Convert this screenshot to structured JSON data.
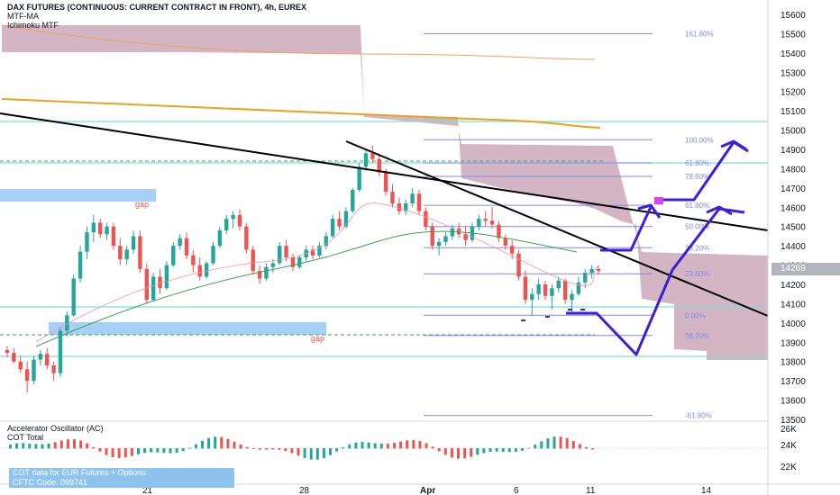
{
  "header": {
    "title": "DAX FUTURES (CONTINUOUS: CURRENT CONTRACT IN FRONT), 4h, EUREX",
    "indicator_1": "MTF-MA",
    "indicator_2": "Ichimoku MTF"
  },
  "oscillator": {
    "label_1": "Accelerator Oscillator (AC)",
    "label_2": "COT Total",
    "note_line_1": "COT data for EUR Futures + Options",
    "note_line_2": "CFTC Code: 099741"
  },
  "current_price": "14269",
  "colors": {
    "up_candle": "#26a69a",
    "down_candle": "#ef5350",
    "cloud": "#c9a3b4",
    "fib_line": "#7b8cf0",
    "cyan_level": "#7fdedc",
    "forecast": "#3d1fd9",
    "trendline": "#000000",
    "gap_zone": "#90c4f5"
  },
  "chart_data": {
    "type": "candlestick",
    "timeframe": "4h",
    "y_axis": {
      "ticks": [
        13500,
        13600,
        13700,
        13800,
        13900,
        14000,
        14100,
        14200,
        14300,
        14400,
        14500,
        14600,
        14700,
        14800,
        14900,
        15000,
        15100,
        15200,
        15300,
        15400,
        15500,
        15600
      ],
      "range": [
        13480,
        15720
      ]
    },
    "x_axis": {
      "tick_labels": [
        "21",
        "28",
        "Apr",
        "6",
        "11",
        "14"
      ]
    },
    "fibonacci_levels": [
      {
        "label": "161.80%",
        "value": 15500
      },
      {
        "label": "100.00%",
        "value": 14950
      },
      {
        "label": "61.80%",
        "value": 14830
      },
      {
        "label": "78.60%",
        "value": 14760
      },
      {
        "label": "61.80%",
        "value": 14610
      },
      {
        "label": "50.00%",
        "value": 14500
      },
      {
        "label": "38.20%",
        "value": 14390
      },
      {
        "label": "23.60%",
        "value": 14255
      },
      {
        "label": "0.00%",
        "value": 14040
      },
      {
        "label": "38.20%",
        "value": 13935
      },
      {
        "label": "-61.80%",
        "value": 13520
      }
    ],
    "annotations": [
      "gap",
      "gap"
    ],
    "candles": [
      [
        13860,
        13880,
        13820,
        13845
      ],
      [
        13845,
        13870,
        13790,
        13800
      ],
      [
        13800,
        13830,
        13740,
        13760
      ],
      [
        13760,
        13800,
        13640,
        13700
      ],
      [
        13700,
        13830,
        13680,
        13810
      ],
      [
        13810,
        13860,
        13780,
        13840
      ],
      [
        13840,
        13870,
        13760,
        13780
      ],
      [
        13780,
        13800,
        13700,
        13740
      ],
      [
        13740,
        13980,
        13720,
        13960
      ],
      [
        13960,
        14060,
        13930,
        14040
      ],
      [
        14040,
        14250,
        14030,
        14230
      ],
      [
        14230,
        14400,
        14210,
        14370
      ],
      [
        14370,
        14500,
        14330,
        14470
      ],
      [
        14470,
        14560,
        14420,
        14520
      ],
      [
        14520,
        14540,
        14440,
        14460
      ],
      [
        14460,
        14520,
        14430,
        14500
      ],
      [
        14500,
        14520,
        14380,
        14400
      ],
      [
        14400,
        14440,
        14300,
        14330
      ],
      [
        14330,
        14400,
        14300,
        14380
      ],
      [
        14380,
        14480,
        14360,
        14450
      ],
      [
        14450,
        14480,
        14260,
        14280
      ],
      [
        14280,
        14310,
        14100,
        14120
      ],
      [
        14120,
        14260,
        14110,
        14240
      ],
      [
        14240,
        14280,
        14150,
        14180
      ],
      [
        14180,
        14320,
        14170,
        14300
      ],
      [
        14300,
        14420,
        14290,
        14400
      ],
      [
        14400,
        14460,
        14380,
        14440
      ],
      [
        14440,
        14470,
        14330,
        14350
      ],
      [
        14350,
        14380,
        14260,
        14300
      ],
      [
        14300,
        14340,
        14220,
        14240
      ],
      [
        14240,
        14320,
        14230,
        14310
      ],
      [
        14310,
        14420,
        14300,
        14400
      ],
      [
        14400,
        14500,
        14390,
        14480
      ],
      [
        14480,
        14560,
        14460,
        14540
      ],
      [
        14540,
        14580,
        14490,
        14560
      ],
      [
        14560,
        14590,
        14480,
        14500
      ],
      [
        14500,
        14520,
        14360,
        14380
      ],
      [
        14380,
        14400,
        14250,
        14270
      ],
      [
        14270,
        14300,
        14200,
        14230
      ],
      [
        14230,
        14310,
        14220,
        14290
      ],
      [
        14290,
        14330,
        14260,
        14310
      ],
      [
        14310,
        14420,
        14300,
        14400
      ],
      [
        14400,
        14430,
        14320,
        14340
      ],
      [
        14340,
        14360,
        14270,
        14290
      ],
      [
        14290,
        14350,
        14280,
        14340
      ],
      [
        14340,
        14400,
        14320,
        14380
      ],
      [
        14380,
        14400,
        14330,
        14350
      ],
      [
        14350,
        14420,
        14340,
        14400
      ],
      [
        14400,
        14470,
        14380,
        14450
      ],
      [
        14450,
        14560,
        14440,
        14540
      ],
      [
        14540,
        14580,
        14480,
        14500
      ],
      [
        14500,
        14600,
        14490,
        14580
      ],
      [
        14580,
        14700,
        14570,
        14690
      ],
      [
        14690,
        14830,
        14680,
        14810
      ],
      [
        14810,
        14900,
        14790,
        14880
      ],
      [
        14880,
        14920,
        14830,
        14850
      ],
      [
        14850,
        14870,
        14760,
        14780
      ],
      [
        14780,
        14800,
        14660,
        14680
      ],
      [
        14680,
        14720,
        14600,
        14620
      ],
      [
        14620,
        14650,
        14560,
        14580
      ],
      [
        14580,
        14640,
        14560,
        14620
      ],
      [
        14620,
        14700,
        14600,
        14670
      ],
      [
        14670,
        14690,
        14560,
        14580
      ],
      [
        14580,
        14600,
        14480,
        14500
      ],
      [
        14500,
        14520,
        14380,
        14400
      ],
      [
        14400,
        14440,
        14350,
        14420
      ],
      [
        14420,
        14470,
        14400,
        14450
      ],
      [
        14450,
        14510,
        14430,
        14490
      ],
      [
        14490,
        14520,
        14440,
        14460
      ],
      [
        14460,
        14500,
        14400,
        14430
      ],
      [
        14430,
        14520,
        14420,
        14500
      ],
      [
        14500,
        14560,
        14480,
        14540
      ],
      [
        14540,
        14580,
        14500,
        14530
      ],
      [
        14530,
        14600,
        14490,
        14510
      ],
      [
        14510,
        14530,
        14420,
        14440
      ],
      [
        14440,
        14460,
        14380,
        14400
      ],
      [
        14400,
        14430,
        14330,
        14360
      ],
      [
        14360,
        14380,
        14220,
        14240
      ],
      [
        14240,
        14270,
        14100,
        14120
      ],
      [
        14120,
        14180,
        14040,
        14150
      ],
      [
        14150,
        14230,
        14120,
        14200
      ],
      [
        14200,
        14220,
        14120,
        14140
      ],
      [
        14140,
        14200,
        14070,
        14180
      ],
      [
        14180,
        14240,
        14160,
        14220
      ],
      [
        14220,
        14230,
        14100,
        14120
      ],
      [
        14120,
        14170,
        14050,
        14150
      ],
      [
        14150,
        14240,
        14140,
        14210
      ],
      [
        14210,
        14280,
        14180,
        14260
      ],
      [
        14260,
        14300,
        14230,
        14280
      ],
      [
        14280,
        14300,
        14250,
        14269
      ]
    ]
  }
}
